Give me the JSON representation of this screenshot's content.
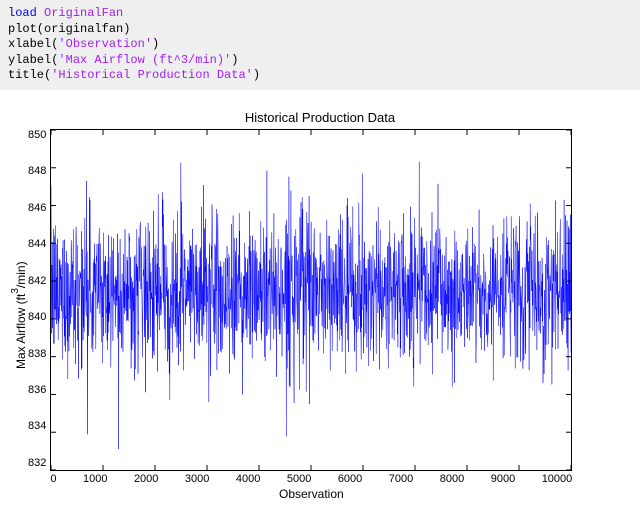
{
  "code": {
    "line1_kw": "load",
    "line1_arg": " OriginalFan",
    "line2": "plot(originalfan)",
    "line3_fn": "xlabel(",
    "line3_str": "'Observation'",
    "line3_end": ")",
    "line4_fn": "ylabel(",
    "line4_str": "'Max Airflow (ft^3/min)'",
    "line4_end": ")",
    "line5_fn": "title(",
    "line5_str": "'Historical Production Data'",
    "line5_end": ")"
  },
  "chart": {
    "type": "line",
    "title": "Historical Production Data",
    "title_fontsize": 13,
    "xlabel": "Observation",
    "ylabel_pre": "Max Airflow (ft",
    "ylabel_sup": "3",
    "ylabel_post": "/min)",
    "label_fontsize": 12,
    "xlim": [
      0,
      10000
    ],
    "ylim": [
      832,
      850
    ],
    "xticks": [
      0,
      1000,
      2000,
      3000,
      4000,
      5000,
      6000,
      7000,
      8000,
      9000,
      10000
    ],
    "yticks": [
      832,
      834,
      836,
      838,
      840,
      842,
      844,
      846,
      848,
      850
    ],
    "n_points": 10000,
    "mean": 841.5,
    "std": 2.0,
    "line_color": "#0000ff",
    "line_width": 0.5,
    "background_color": "#ffffff",
    "axis_color": "#000000",
    "tick_fontsize": 11
  }
}
